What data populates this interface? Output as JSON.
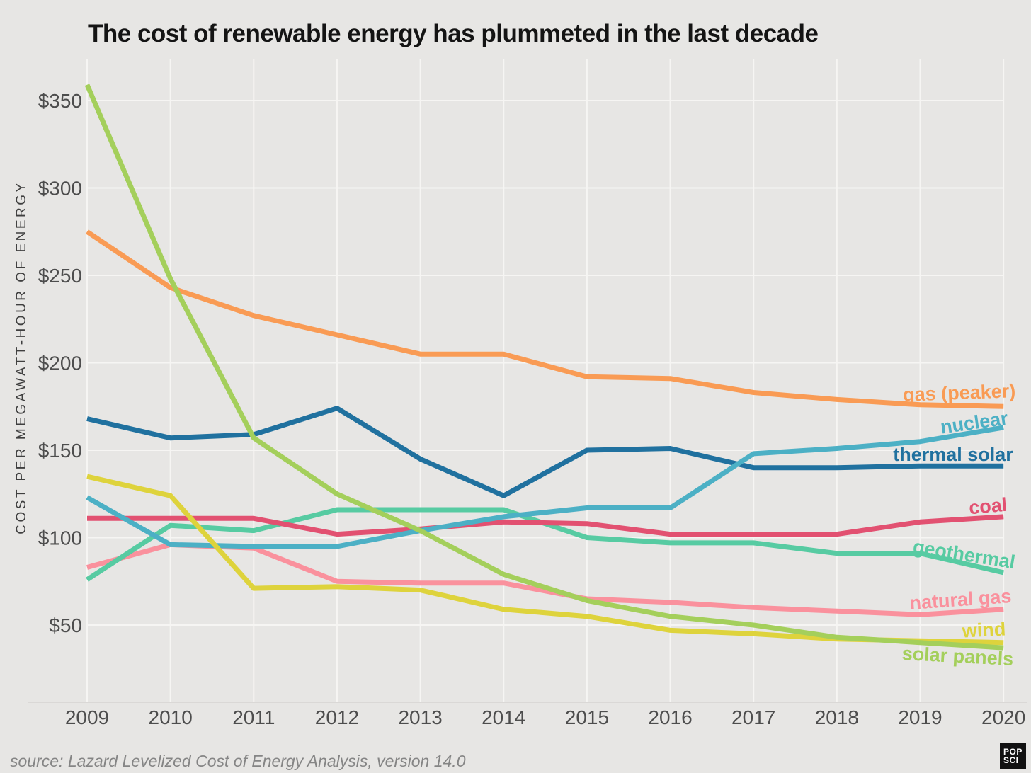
{
  "header": {
    "title": "The cost of renewable energy has plummeted in the last decade"
  },
  "footer": {
    "source": "source: Lazard Levelized Cost of Energy Analysis, version 14.0",
    "logo_line1": "POP",
    "logo_line2": "SCI"
  },
  "chart_data": {
    "type": "line",
    "title": "The cost of renewable energy has plummeted in the last decade",
    "xlabel": "",
    "ylabel": "COST PER MEGAWATT-HOUR OF ENERGY",
    "x": [
      2009,
      2010,
      2011,
      2012,
      2013,
      2014,
      2015,
      2016,
      2017,
      2018,
      2019,
      2020
    ],
    "y_ticks": [
      350,
      300,
      250,
      200,
      150,
      100,
      50
    ],
    "y_tick_prefix": "$",
    "ylim": [
      0,
      375
    ],
    "grid": true,
    "legend_position": "right-edge-inline-labels",
    "series": [
      {
        "name": "gas (peaker)",
        "color": "#f99b54",
        "values": [
          275,
          243,
          227,
          216,
          205,
          205,
          192,
          191,
          183,
          179,
          176,
          175
        ]
      },
      {
        "name": "nuclear",
        "color": "#4cb0c5",
        "values": [
          123,
          96,
          95,
          95,
          104,
          112,
          117,
          117,
          148,
          151,
          155,
          163
        ]
      },
      {
        "name": "thermal solar",
        "color": "#20719f",
        "values": [
          168,
          157,
          159,
          174,
          145,
          124,
          150,
          151,
          140,
          140,
          141,
          141
        ]
      },
      {
        "name": "coal",
        "color": "#e25171",
        "values": [
          111,
          111,
          111,
          102,
          105,
          109,
          108,
          102,
          102,
          102,
          109,
          112
        ]
      },
      {
        "name": "geothermal",
        "color": "#57cba2",
        "values": [
          76,
          107,
          104,
          116,
          116,
          116,
          100,
          97,
          97,
          91,
          91,
          80
        ]
      },
      {
        "name": "natural gas",
        "color": "#fa919d",
        "values": [
          83,
          96,
          94,
          75,
          74,
          74,
          65,
          63,
          60,
          58,
          56,
          59
        ]
      },
      {
        "name": "wind",
        "color": "#ded33c",
        "values": [
          135,
          124,
          71,
          72,
          70,
          59,
          55,
          47,
          45,
          42,
          41,
          40
        ]
      },
      {
        "name": "solar panels",
        "color": "#a4cf5b",
        "values": [
          359,
          248,
          157,
          125,
          104,
          79,
          64,
          55,
          50,
          43,
          40,
          37
        ]
      }
    ]
  }
}
